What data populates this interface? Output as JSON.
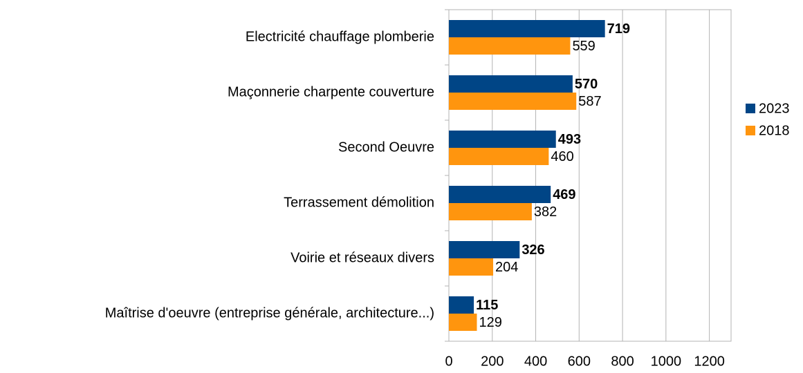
{
  "chart_data": {
    "type": "bar",
    "orientation": "horizontal",
    "categories": [
      "Electricité chauffage plomberie",
      "Maçonnerie charpente couverture",
      "Second Oeuvre",
      "Terrassement démolition",
      "Voirie et réseaux divers",
      "Maîtrise d'oeuvre (entreprise générale, architecture...)"
    ],
    "series": [
      {
        "name": "2023",
        "color": "#004586",
        "values": [
          719,
          570,
          493,
          469,
          326,
          115
        ]
      },
      {
        "name": "2018",
        "color": "#ff950e",
        "values": [
          559,
          587,
          460,
          382,
          204,
          129
        ]
      }
    ],
    "xlim": [
      0,
      1300
    ],
    "xticks": [
      0,
      200,
      400,
      600,
      800,
      1000,
      1200
    ],
    "grid": true,
    "legend": "right"
  }
}
